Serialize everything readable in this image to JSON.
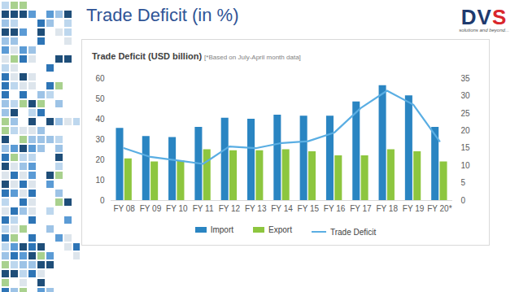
{
  "slide_title": "Trade Deficit (in %)",
  "logo": {
    "text": "DVS",
    "tagline": "solutions and beyond..."
  },
  "chart_data": {
    "type": "bar",
    "title": "Trade Deficit (USD billion)",
    "subtitle": "[*Based on July-April month data]",
    "categories": [
      "FY 08",
      "FY 09",
      "FY 10",
      "FY 11",
      "FY 12",
      "FY 13",
      "FY 14",
      "FY 15",
      "FY 16",
      "FY 17",
      "FY 18",
      "FY 19",
      "FY 20*"
    ],
    "series": [
      {
        "name": "Import",
        "type": "bar",
        "color": "#2a85c2",
        "values": [
          35.5,
          31.5,
          31,
          36,
          40.5,
          40,
          42,
          41.5,
          41.5,
          48.5,
          56.5,
          51.5,
          36
        ]
      },
      {
        "name": "Export",
        "type": "bar",
        "color": "#8dc63f",
        "values": [
          20.5,
          19,
          19.5,
          25,
          24.5,
          24.5,
          25,
          24,
          22,
          22,
          25,
          24,
          19
        ]
      },
      {
        "name": "Trade Deficit",
        "type": "line",
        "axis": "y2",
        "color": "#5aaee3",
        "values": [
          15,
          12.5,
          11.5,
          10.5,
          15.5,
          15,
          16.5,
          17,
          19.5,
          26.5,
          31.5,
          27.5,
          17
        ]
      }
    ],
    "ylim": [
      0,
      60
    ],
    "yticks": [
      0,
      10,
      20,
      30,
      40,
      50,
      60
    ],
    "y2lim": [
      0,
      35
    ],
    "y2ticks": [
      0,
      5,
      10,
      15,
      20,
      25,
      30,
      35
    ],
    "grid": false,
    "legend": "bottom"
  }
}
